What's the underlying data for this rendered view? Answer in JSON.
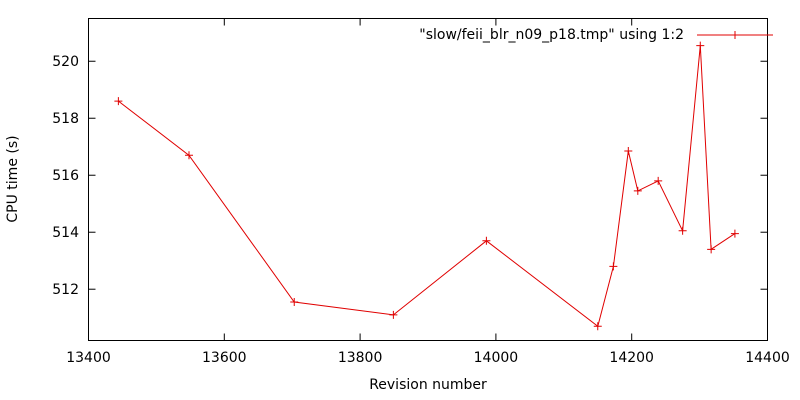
{
  "chart_data": {
    "type": "line",
    "xlabel": "Revision number",
    "ylabel": "CPU time (s)",
    "xlim": [
      13400,
      14400
    ],
    "ylim": [
      510.2,
      521.5
    ],
    "x_ticks": [
      13400,
      13600,
      13800,
      14000,
      14200,
      14400
    ],
    "y_ticks": [
      512,
      514,
      516,
      518,
      520
    ],
    "grid": false,
    "legend_position": "top-right",
    "series": [
      {
        "name": "\"slow/feii_blr_n09_p18.tmp\" using 1:2",
        "color": "#e00000",
        "marker": "plus",
        "x": [
          13444,
          13548,
          13703,
          13849,
          13986,
          14150,
          14173,
          14195,
          14209,
          14239,
          14275,
          14301,
          14317,
          14352
        ],
        "y": [
          518.6,
          516.7,
          511.55,
          511.1,
          513.7,
          510.7,
          512.8,
          516.85,
          515.45,
          515.8,
          514.05,
          520.55,
          513.4,
          513.95
        ]
      }
    ]
  }
}
